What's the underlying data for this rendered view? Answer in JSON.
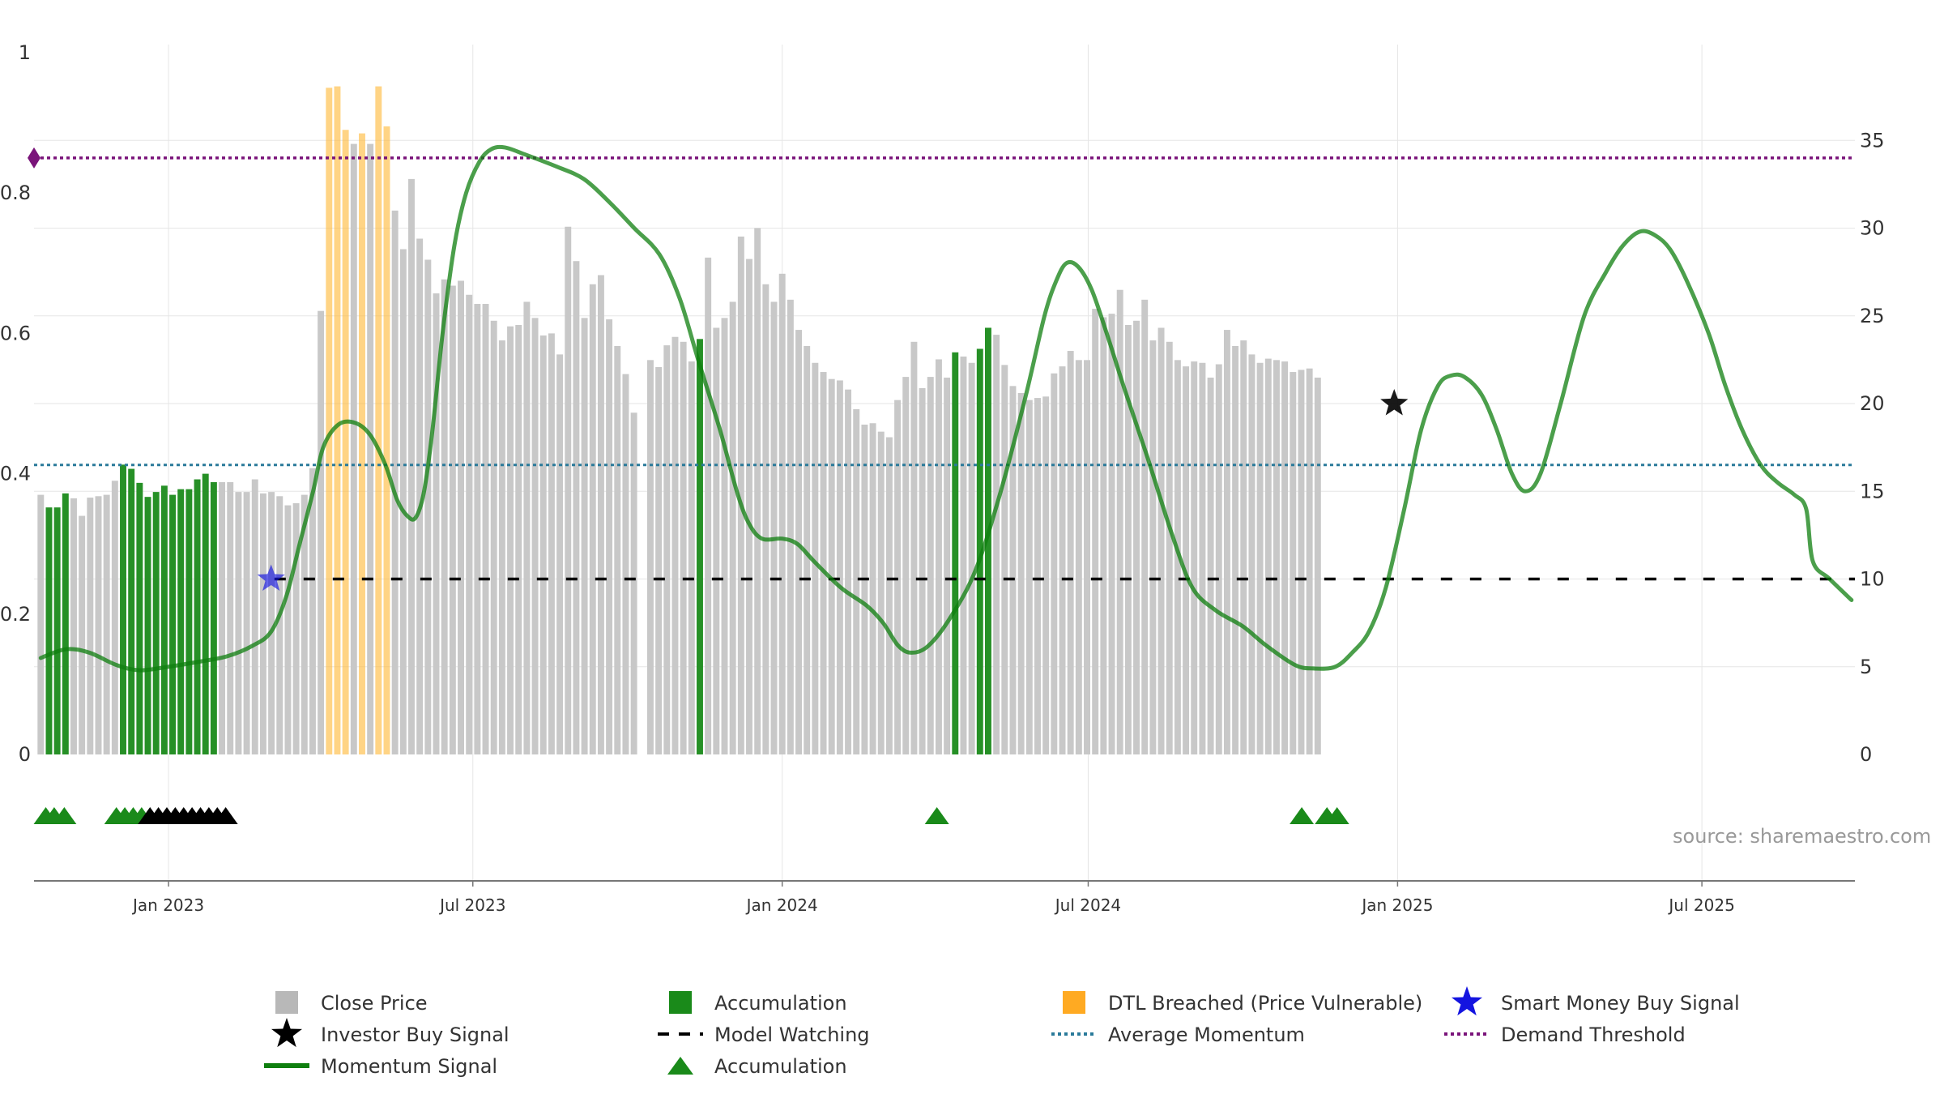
{
  "chart_data": {
    "type": "bar",
    "source_note": "source: sharemaestro.com",
    "x_range": [
      "2022-10-13",
      "2025-09-30"
    ],
    "x_ticks": [
      {
        "date": "2023-01-01",
        "label": "Jan 2023"
      },
      {
        "date": "2023-07-01",
        "label": "Jul 2023"
      },
      {
        "date": "2024-01-01",
        "label": "Jan 2024"
      },
      {
        "date": "2024-07-01",
        "label": "Jul 2024"
      },
      {
        "date": "2025-01-01",
        "label": "Jan 2025"
      },
      {
        "date": "2025-07-01",
        "label": "Jul 2025"
      }
    ],
    "y_left": {
      "min": 0,
      "max": 1,
      "ticks": [
        0,
        0.2,
        0.4,
        0.6,
        0.8,
        1
      ],
      "tick_labels": [
        "0",
        "0.2",
        "0.4",
        "0.6",
        "0.8",
        "1"
      ]
    },
    "y_right": {
      "min": 0,
      "max": 40,
      "ticks": [
        0,
        5,
        10,
        15,
        20,
        25,
        30,
        35
      ],
      "tick_labels": [
        "0",
        "5",
        "10",
        "15",
        "20",
        "25",
        "30",
        "35"
      ]
    },
    "bar_start_date": "2022-10-17",
    "bar_interval_days": 4.9,
    "close_price": [
      0.37,
      0.352,
      0.352,
      0.372,
      0.365,
      0.34,
      0.366,
      0.368,
      0.37,
      0.39,
      0.413,
      0.407,
      0.387,
      0.367,
      0.374,
      0.383,
      0.37,
      0.378,
      0.378,
      0.392,
      0.4,
      0.388,
      0.388,
      0.388,
      0.374,
      0.374,
      0.392,
      0.372,
      0.374,
      0.368,
      0.355,
      0.358,
      0.37,
      0.408,
      0.632,
      0.95,
      0.952,
      0.89,
      0.87,
      0.885,
      0.87,
      0.952,
      0.895,
      0.775,
      0.72,
      0.82,
      0.735,
      0.705,
      0.657,
      0.677,
      0.668,
      0.675,
      0.655,
      0.642,
      0.642,
      0.618,
      0.59,
      0.61,
      0.612,
      0.645,
      0.622,
      0.597,
      0.6,
      0.57,
      0.752,
      0.703,
      0.622,
      0.67,
      0.683,
      0.62,
      0.582,
      0.542,
      0.487,
      null,
      0.562,
      0.552,
      0.583,
      0.595,
      0.588,
      0.56,
      0.592,
      0.708,
      0.608,
      0.622,
      0.645,
      0.738,
      0.706,
      0.75,
      0.67,
      0.645,
      0.685,
      0.648,
      0.605,
      0.582,
      0.558,
      0.545,
      0.535,
      0.533,
      0.52,
      0.492,
      0.47,
      0.472,
      0.46,
      0.452,
      0.505,
      0.538,
      0.588,
      0.522,
      0.538,
      0.563,
      0.537,
      0.573,
      0.567,
      0.558,
      0.578,
      0.608,
      0.598,
      0.555,
      0.525,
      0.515,
      0.505,
      0.508,
      0.51,
      0.543,
      0.553,
      0.575,
      0.562,
      0.562,
      0.635,
      0.623,
      0.628,
      0.662,
      0.612,
      0.618,
      0.648,
      0.59,
      0.608,
      0.588,
      0.562,
      0.553,
      0.56,
      0.558,
      0.537,
      0.556,
      0.605,
      0.582,
      0.59,
      0.57,
      0.558,
      0.564,
      0.562,
      0.56,
      0.545,
      0.548,
      0.55,
      0.537
    ],
    "accumulation_bar_indices": [
      1,
      2,
      3,
      10,
      11,
      12,
      13,
      14,
      15,
      16,
      17,
      18,
      19,
      20,
      21,
      80,
      111,
      114,
      115
    ],
    "dtl_breached_bar_indices": [
      35,
      36,
      37,
      39,
      41,
      42
    ],
    "momentum_signal": [
      {
        "date": "2022-10-17",
        "v": 5.5
      },
      {
        "date": "2022-11-01",
        "v": 6.0
      },
      {
        "date": "2022-11-15",
        "v": 5.8
      },
      {
        "date": "2022-12-01",
        "v": 5.1
      },
      {
        "date": "2022-12-15",
        "v": 4.8
      },
      {
        "date": "2023-01-01",
        "v": 5.0
      },
      {
        "date": "2023-01-20",
        "v": 5.3
      },
      {
        "date": "2023-02-05",
        "v": 5.6
      },
      {
        "date": "2023-02-20",
        "v": 6.2
      },
      {
        "date": "2023-03-03",
        "v": 7.0
      },
      {
        "date": "2023-03-12",
        "v": 9.0
      },
      {
        "date": "2023-03-20",
        "v": 12.0
      },
      {
        "date": "2023-03-28",
        "v": 15.0
      },
      {
        "date": "2023-04-03",
        "v": 17.5
      },
      {
        "date": "2023-04-12",
        "v": 18.8
      },
      {
        "date": "2023-04-22",
        "v": 18.9
      },
      {
        "date": "2023-05-01",
        "v": 18.2
      },
      {
        "date": "2023-05-10",
        "v": 16.5
      },
      {
        "date": "2023-05-17",
        "v": 14.5
      },
      {
        "date": "2023-05-23",
        "v": 13.6
      },
      {
        "date": "2023-05-28",
        "v": 13.5
      },
      {
        "date": "2023-06-02",
        "v": 15.0
      },
      {
        "date": "2023-06-07",
        "v": 18.5
      },
      {
        "date": "2023-06-13",
        "v": 24.0
      },
      {
        "date": "2023-06-20",
        "v": 29.0
      },
      {
        "date": "2023-06-27",
        "v": 32.0
      },
      {
        "date": "2023-07-05",
        "v": 33.8
      },
      {
        "date": "2023-07-12",
        "v": 34.5
      },
      {
        "date": "2023-07-20",
        "v": 34.6
      },
      {
        "date": "2023-08-01",
        "v": 34.2
      },
      {
        "date": "2023-08-20",
        "v": 33.5
      },
      {
        "date": "2023-09-05",
        "v": 32.8
      },
      {
        "date": "2023-09-20",
        "v": 31.5
      },
      {
        "date": "2023-10-05",
        "v": 30.0
      },
      {
        "date": "2023-10-20",
        "v": 28.5
      },
      {
        "date": "2023-11-01",
        "v": 26.0
      },
      {
        "date": "2023-11-12",
        "v": 22.5
      },
      {
        "date": "2023-11-25",
        "v": 18.5
      },
      {
        "date": "2023-12-05",
        "v": 15.0
      },
      {
        "date": "2023-12-12",
        "v": 13.2
      },
      {
        "date": "2023-12-20",
        "v": 12.3
      },
      {
        "date": "2024-01-01",
        "v": 12.3
      },
      {
        "date": "2024-01-10",
        "v": 12.0
      },
      {
        "date": "2024-01-20",
        "v": 11.0
      },
      {
        "date": "2024-02-05",
        "v": 9.5
      },
      {
        "date": "2024-02-20",
        "v": 8.5
      },
      {
        "date": "2024-03-01",
        "v": 7.5
      },
      {
        "date": "2024-03-10",
        "v": 6.2
      },
      {
        "date": "2024-03-18",
        "v": 5.8
      },
      {
        "date": "2024-03-28",
        "v": 6.2
      },
      {
        "date": "2024-04-10",
        "v": 7.8
      },
      {
        "date": "2024-04-25",
        "v": 10.5
      },
      {
        "date": "2024-05-10",
        "v": 15.0
      },
      {
        "date": "2024-05-25",
        "v": 20.5
      },
      {
        "date": "2024-06-05",
        "v": 25.0
      },
      {
        "date": "2024-06-12",
        "v": 27.0
      },
      {
        "date": "2024-06-18",
        "v": 28.0
      },
      {
        "date": "2024-06-25",
        "v": 27.8
      },
      {
        "date": "2024-07-03",
        "v": 26.5
      },
      {
        "date": "2024-07-12",
        "v": 24.0
      },
      {
        "date": "2024-07-22",
        "v": 21.0
      },
      {
        "date": "2024-08-05",
        "v": 17.0
      },
      {
        "date": "2024-08-20",
        "v": 12.5
      },
      {
        "date": "2024-09-01",
        "v": 9.5
      },
      {
        "date": "2024-09-15",
        "v": 8.2
      },
      {
        "date": "2024-10-01",
        "v": 7.3
      },
      {
        "date": "2024-10-15",
        "v": 6.2
      },
      {
        "date": "2024-11-01",
        "v": 5.1
      },
      {
        "date": "2024-11-12",
        "v": 4.9
      },
      {
        "date": "2024-11-25",
        "v": 5.0
      },
      {
        "date": "2024-12-05",
        "v": 5.8
      },
      {
        "date": "2024-12-15",
        "v": 7.0
      },
      {
        "date": "2024-12-25",
        "v": 9.5
      },
      {
        "date": "2025-01-05",
        "v": 14.0
      },
      {
        "date": "2025-01-15",
        "v": 18.5
      },
      {
        "date": "2025-01-25",
        "v": 21.0
      },
      {
        "date": "2025-02-02",
        "v": 21.6
      },
      {
        "date": "2025-02-10",
        "v": 21.5
      },
      {
        "date": "2025-02-20",
        "v": 20.5
      },
      {
        "date": "2025-03-01",
        "v": 18.5
      },
      {
        "date": "2025-03-10",
        "v": 16.0
      },
      {
        "date": "2025-03-18",
        "v": 15.0
      },
      {
        "date": "2025-03-27",
        "v": 16.0
      },
      {
        "date": "2025-04-08",
        "v": 20.0
      },
      {
        "date": "2025-04-22",
        "v": 25.0
      },
      {
        "date": "2025-05-05",
        "v": 27.5
      },
      {
        "date": "2025-05-15",
        "v": 29.0
      },
      {
        "date": "2025-05-25",
        "v": 29.8
      },
      {
        "date": "2025-06-03",
        "v": 29.6
      },
      {
        "date": "2025-06-12",
        "v": 28.8
      },
      {
        "date": "2025-06-22",
        "v": 27.0
      },
      {
        "date": "2025-07-05",
        "v": 24.0
      },
      {
        "date": "2025-07-15",
        "v": 21.0
      },
      {
        "date": "2025-07-25",
        "v": 18.5
      },
      {
        "date": "2025-08-05",
        "v": 16.5
      },
      {
        "date": "2025-08-15",
        "v": 15.5
      },
      {
        "date": "2025-08-25",
        "v": 14.8
      },
      {
        "date": "2025-09-01",
        "v": 14.0
      },
      {
        "date": "2025-09-05",
        "v": 11.0
      },
      {
        "date": "2025-09-15",
        "v": 10.0
      },
      {
        "date": "2025-09-28",
        "v": 8.8
      }
    ],
    "model_watching": {
      "value": 10,
      "from": "2023-03-05",
      "to": "2025-09-30"
    },
    "average_momentum": 16.5,
    "demand_threshold": 34.0,
    "smart_money_buy_signals": [
      {
        "date": "2023-03-03",
        "v": 10.0
      }
    ],
    "investor_buy_signals": [
      {
        "date": "2024-12-30",
        "v": 20.0
      }
    ],
    "accumulation_markers": [
      {
        "date": "2022-10-20",
        "color": "#1a8a1a"
      },
      {
        "date": "2022-10-25",
        "color": "#1a8a1a"
      },
      {
        "date": "2022-10-31",
        "color": "#1a8a1a"
      },
      {
        "date": "2022-12-01",
        "color": "#1a8a1a"
      },
      {
        "date": "2022-12-06",
        "color": "#1a8a1a"
      },
      {
        "date": "2022-12-11",
        "color": "#1a8a1a"
      },
      {
        "date": "2022-12-16",
        "color": "#1a8a1a"
      },
      {
        "date": "2022-12-21",
        "color": "#000000"
      },
      {
        "date": "2022-12-26",
        "color": "#000000"
      },
      {
        "date": "2022-12-31",
        "color": "#000000"
      },
      {
        "date": "2023-01-05",
        "color": "#000000"
      },
      {
        "date": "2023-01-10",
        "color": "#000000"
      },
      {
        "date": "2023-01-15",
        "color": "#000000"
      },
      {
        "date": "2023-01-20",
        "color": "#000000"
      },
      {
        "date": "2023-01-25",
        "color": "#000000"
      },
      {
        "date": "2023-01-30",
        "color": "#000000"
      },
      {
        "date": "2023-02-04",
        "color": "#000000"
      },
      {
        "date": "2024-04-02",
        "color": "#1a8a1a"
      },
      {
        "date": "2024-11-05",
        "color": "#1a8a1a"
      },
      {
        "date": "2024-11-20",
        "color": "#1a8a1a"
      },
      {
        "date": "2024-11-26",
        "color": "#1a8a1a"
      }
    ],
    "colors": {
      "close_price": "#c8c8c8",
      "accumulation": "#1a8a1a",
      "dtl_breached": "#ffb733",
      "momentum": "#0f7f0f",
      "model_watching": "#000000",
      "average_momentum": "#2a7a9a",
      "demand_threshold": "#7a147a",
      "smart_money": "#1414e0",
      "investor": "#000000",
      "grid": "#e6e6e6",
      "axis": "#555555"
    },
    "legend": [
      {
        "key": "close_price",
        "label": "Close Price",
        "swatch": "square",
        "color": "#b8b8b8"
      },
      {
        "key": "accumulation_bar",
        "label": "Accumulation",
        "swatch": "square",
        "color": "#1a8a1a"
      },
      {
        "key": "dtl",
        "label": "DTL Breached (Price Vulnerable)",
        "swatch": "square",
        "color": "#ffaa22"
      },
      {
        "key": "smart_money",
        "label": "Smart Money Buy Signal",
        "swatch": "star",
        "color": "#1414e0"
      },
      {
        "key": "investor",
        "label": "Investor Buy Signal",
        "swatch": "star",
        "color": "#000000"
      },
      {
        "key": "model_watching",
        "label": "Model Watching",
        "swatch": "dash",
        "color": "#000000"
      },
      {
        "key": "average_momentum",
        "label": "Average Momentum",
        "swatch": "dot",
        "color": "#2a7a9a"
      },
      {
        "key": "demand_threshold",
        "label": "Demand Threshold",
        "swatch": "dot",
        "color": "#7a147a"
      },
      {
        "key": "momentum",
        "label": "Momentum Signal",
        "swatch": "line",
        "color": "#0f7f0f"
      },
      {
        "key": "accumulation_marker",
        "label": "Accumulation",
        "swatch": "triangle",
        "color": "#1a8a1a"
      }
    ]
  }
}
